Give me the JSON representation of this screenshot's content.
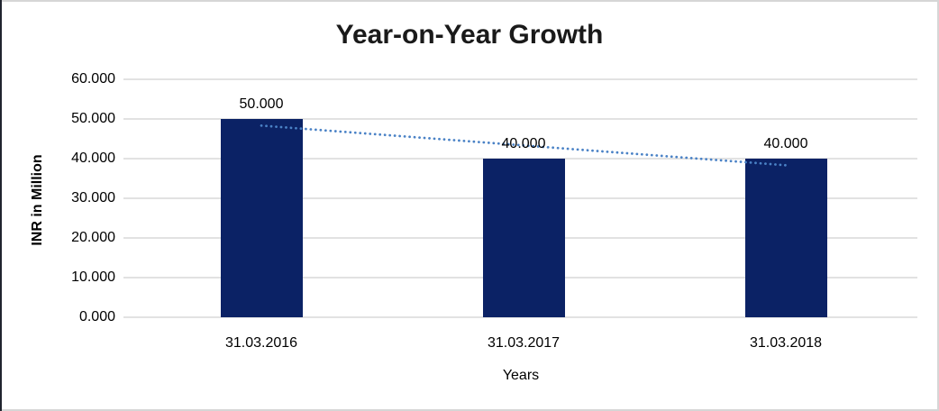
{
  "chart_data": {
    "type": "bar",
    "title": "Year-on-Year Growth",
    "xlabel": "Years",
    "ylabel": "INR in Million",
    "categories": [
      "31.03.2016",
      "31.03.2017",
      "31.03.2018"
    ],
    "values": [
      50,
      40,
      40
    ],
    "value_labels": [
      "50.000",
      "40.000",
      "40.000"
    ],
    "ylim": [
      0,
      60
    ],
    "ytick_step": 10,
    "ytick_labels": [
      "0.000",
      "10.000",
      "20.000",
      "30.000",
      "40.000",
      "50.000",
      "60.000"
    ],
    "grid": true,
    "legend": false,
    "bar_color": "#0b2265",
    "gridline_color": "#d9d9d9",
    "trendline": {
      "type": "linear",
      "style": "dotted",
      "color": "#4a82c6",
      "values": [
        48.33,
        43.33,
        38.33
      ]
    }
  }
}
